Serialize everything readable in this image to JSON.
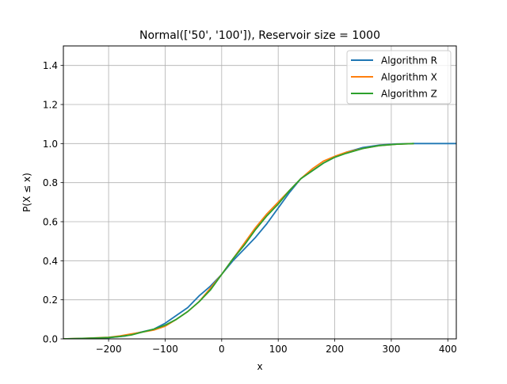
{
  "chart_data": {
    "type": "line",
    "title": "Normal(['50', '100']), Reservoir size = 1000",
    "xlabel": "x",
    "ylabel": "P(X ≤ x)",
    "xlim": [
      -280,
      415
    ],
    "ylim": [
      0,
      1.5
    ],
    "xticks": [
      -200,
      -100,
      0,
      100,
      200,
      300,
      400
    ],
    "xtick_labels": [
      "−200",
      "−100",
      "0",
      "100",
      "200",
      "300",
      "400"
    ],
    "yticks": [
      0,
      0.2,
      0.4,
      0.6,
      0.8,
      1.0,
      1.2,
      1.4
    ],
    "ytick_labels": [
      "0.0",
      "0.2",
      "0.4",
      "0.6",
      "0.8",
      "1.0",
      "1.2",
      "1.4"
    ],
    "grid": true,
    "legend_position": "top-right",
    "series": [
      {
        "name": "Algorithm R",
        "color": "#1f77b4",
        "points": [
          [
            -280,
            0.0
          ],
          [
            -240,
            0.002
          ],
          [
            -200,
            0.006
          ],
          [
            -170,
            0.015
          ],
          [
            -150,
            0.03
          ],
          [
            -120,
            0.05
          ],
          [
            -100,
            0.08
          ],
          [
            -80,
            0.12
          ],
          [
            -60,
            0.16
          ],
          [
            -40,
            0.22
          ],
          [
            -20,
            0.27
          ],
          [
            0,
            0.33
          ],
          [
            20,
            0.4
          ],
          [
            40,
            0.46
          ],
          [
            60,
            0.52
          ],
          [
            80,
            0.59
          ],
          [
            100,
            0.67
          ],
          [
            120,
            0.75
          ],
          [
            140,
            0.82
          ],
          [
            160,
            0.86
          ],
          [
            180,
            0.9
          ],
          [
            200,
            0.93
          ],
          [
            220,
            0.955
          ],
          [
            250,
            0.98
          ],
          [
            280,
            0.993
          ],
          [
            310,
            0.998
          ],
          [
            340,
            1.0
          ],
          [
            415,
            1.0
          ]
        ]
      },
      {
        "name": "Algorithm X",
        "color": "#ff7f0e",
        "points": [
          [
            -280,
            0.0
          ],
          [
            -240,
            0.003
          ],
          [
            -200,
            0.008
          ],
          [
            -180,
            0.015
          ],
          [
            -160,
            0.025
          ],
          [
            -140,
            0.035
          ],
          [
            -120,
            0.045
          ],
          [
            -100,
            0.065
          ],
          [
            -80,
            0.1
          ],
          [
            -60,
            0.14
          ],
          [
            -40,
            0.19
          ],
          [
            -20,
            0.26
          ],
          [
            0,
            0.33
          ],
          [
            20,
            0.41
          ],
          [
            40,
            0.49
          ],
          [
            60,
            0.57
          ],
          [
            80,
            0.64
          ],
          [
            100,
            0.7
          ],
          [
            120,
            0.76
          ],
          [
            140,
            0.82
          ],
          [
            160,
            0.87
          ],
          [
            180,
            0.91
          ],
          [
            200,
            0.935
          ],
          [
            220,
            0.955
          ],
          [
            250,
            0.975
          ],
          [
            280,
            0.99
          ],
          [
            310,
            0.997
          ],
          [
            340,
            1.0
          ]
        ]
      },
      {
        "name": "Algorithm Z",
        "color": "#2ca02c",
        "points": [
          [
            -280,
            0.0
          ],
          [
            -240,
            0.003
          ],
          [
            -200,
            0.007
          ],
          [
            -180,
            0.012
          ],
          [
            -160,
            0.02
          ],
          [
            -140,
            0.035
          ],
          [
            -120,
            0.05
          ],
          [
            -100,
            0.07
          ],
          [
            -80,
            0.1
          ],
          [
            -60,
            0.14
          ],
          [
            -40,
            0.19
          ],
          [
            -20,
            0.25
          ],
          [
            0,
            0.33
          ],
          [
            20,
            0.41
          ],
          [
            40,
            0.48
          ],
          [
            60,
            0.56
          ],
          [
            80,
            0.63
          ],
          [
            100,
            0.69
          ],
          [
            120,
            0.76
          ],
          [
            140,
            0.82
          ],
          [
            160,
            0.86
          ],
          [
            180,
            0.9
          ],
          [
            200,
            0.93
          ],
          [
            220,
            0.95
          ],
          [
            250,
            0.975
          ],
          [
            280,
            0.99
          ],
          [
            310,
            0.997
          ],
          [
            340,
            1.0
          ]
        ]
      }
    ]
  }
}
